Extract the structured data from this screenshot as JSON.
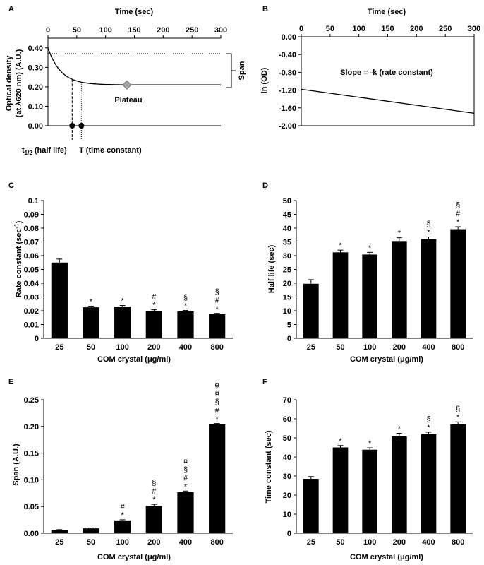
{
  "chart_data": [
    {
      "panel": "A",
      "type": "line",
      "title": "Time (sec)",
      "ylabel": "Optical density",
      "ylabel2": "(at λ620 nm) (A.U.)",
      "xticks": [
        0,
        50,
        100,
        150,
        200,
        250,
        300
      ],
      "yticks": [
        "0.40",
        "0.30",
        "0.20",
        "0.10",
        "0.00"
      ],
      "xlim": [
        0,
        300
      ],
      "ylim": [
        0,
        0.45
      ],
      "curve": {
        "start": 0.4,
        "plateau": 0.21,
        "k": 0.045
      },
      "plateau_marker": {
        "x": 137,
        "y": 0.21
      },
      "half_life_x": 42,
      "time_constant_x": 58,
      "labels": {
        "plateau": "Plateau",
        "span": "Span",
        "half_life_t": "t",
        "half_life_sub": "1/2",
        "half_life_rest": " (half life)",
        "time_constant": "T (time constant)"
      }
    },
    {
      "panel": "B",
      "type": "line",
      "title": "Time (sec)",
      "ylabel": "ln (OD)",
      "xticks": [
        0,
        50,
        100,
        150,
        200,
        250,
        300
      ],
      "yticks": [
        "0.00",
        "-0.40",
        "-0.80",
        "-1.20",
        "-1.60",
        "-2.00"
      ],
      "xlim": [
        0,
        300
      ],
      "ylim": [
        -2.0,
        0
      ],
      "line": {
        "x": [
          0,
          300
        ],
        "y": [
          -1.18,
          -1.72
        ]
      },
      "annotation": "Slope = -k (rate constant)"
    },
    {
      "panel": "C",
      "type": "bar",
      "categories": [
        "25",
        "50",
        "100",
        "200",
        "400",
        "800"
      ],
      "values": [
        0.055,
        0.0225,
        0.023,
        0.02,
        0.0195,
        0.0175
      ],
      "errors": [
        0.0025,
        0.0008,
        0.0008,
        0.0007,
        0.0007,
        0.0006
      ],
      "sig": [
        [],
        [
          "*"
        ],
        [
          "*"
        ],
        [
          "*",
          "#"
        ],
        [
          "*",
          "§"
        ],
        [
          "*",
          "#",
          "§"
        ]
      ],
      "ylabel": "Rate constant (sec",
      "ylabel_sup": "-1",
      "ylabel_end": ")",
      "xlabel": "COM crystal (μg/ml)",
      "ylim": [
        0,
        0.1
      ],
      "yticks": [
        "0",
        "0.01",
        "0.02",
        "0.03",
        "0.04",
        "0.05",
        "0.06",
        "0.07",
        "0.08",
        "0.09",
        "0.1"
      ]
    },
    {
      "panel": "D",
      "type": "bar",
      "categories": [
        "25",
        "50",
        "100",
        "200",
        "400",
        "800"
      ],
      "values": [
        19.8,
        31.2,
        30.4,
        35.3,
        36.0,
        39.6
      ],
      "errors": [
        1.5,
        0.8,
        0.8,
        1.2,
        0.8,
        0.9
      ],
      "sig": [
        [],
        [
          "*"
        ],
        [
          "*"
        ],
        [
          "*"
        ],
        [
          "*",
          "§"
        ],
        [
          "*",
          "#",
          "§"
        ]
      ],
      "ylabel": "Half life (sec)",
      "xlabel": "COM crystal (μg/ml)",
      "ylim": [
        0,
        50
      ],
      "yticks": [
        "0",
        "5",
        "10",
        "15",
        "20",
        "25",
        "30",
        "35",
        "40",
        "45",
        "50"
      ]
    },
    {
      "panel": "E",
      "type": "bar",
      "categories": [
        "25",
        "50",
        "100",
        "200",
        "400",
        "800"
      ],
      "values": [
        0.006,
        0.009,
        0.024,
        0.051,
        0.077,
        0.204
      ],
      "errors": [
        0.0008,
        0.0008,
        0.0012,
        0.003,
        0.002,
        0.0015
      ],
      "sig": [
        [],
        [],
        [
          "*",
          "#"
        ],
        [
          "*",
          "#",
          "§"
        ],
        [
          "*",
          "#",
          "§",
          "¤"
        ],
        [
          "*",
          "#",
          "§",
          "¤",
          "ө"
        ]
      ],
      "ylabel": "Span (A.U.)",
      "xlabel": "COM crystal (μg/ml)",
      "ylim": [
        0,
        0.25
      ],
      "yticks": [
        "0.00",
        "0.05",
        "0.10",
        "0.15",
        "0.20",
        "0.25"
      ]
    },
    {
      "panel": "F",
      "type": "bar",
      "categories": [
        "25",
        "50",
        "100",
        "200",
        "400",
        "800"
      ],
      "values": [
        28.5,
        45.0,
        43.8,
        50.8,
        52.0,
        57.2
      ],
      "errors": [
        1.2,
        1.0,
        1.0,
        1.6,
        1.0,
        1.2
      ],
      "sig": [
        [],
        [
          "*"
        ],
        [
          "*"
        ],
        [
          "*"
        ],
        [
          "*",
          "§"
        ],
        [
          "*",
          "§"
        ]
      ],
      "ylabel": "Time constant (sec)",
      "xlabel": "COM crystal (μg/ml)",
      "ylim": [
        0,
        70
      ],
      "yticks": [
        "0",
        "10",
        "20",
        "30",
        "40",
        "50",
        "60",
        "70"
      ]
    }
  ]
}
